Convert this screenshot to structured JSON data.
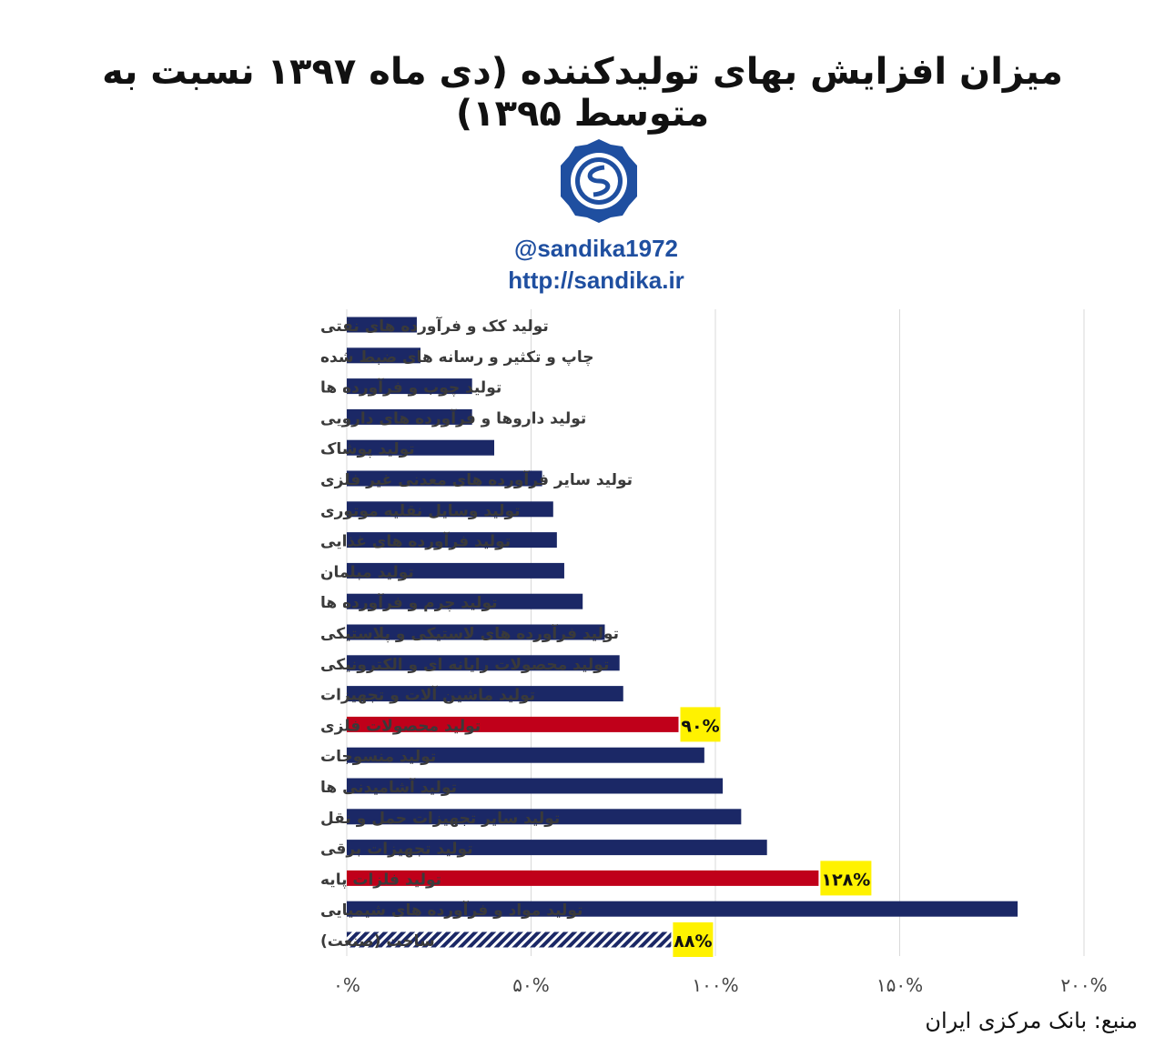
{
  "title": "میزان افزایش بهای تولیدکننده (دی ماه ۱۳۹۷ نسبت به متوسط ۱۳۹۵)",
  "handle": "@sandika1972",
  "url": "http://sandika.ir",
  "source": "منبع: بانک مرکزی ایران",
  "colors": {
    "normal": "#1b2866",
    "highlight": "#c0001a",
    "label_bg": "#fff200",
    "brand": "#1f4fa0"
  },
  "chart_data": {
    "type": "bar",
    "orientation": "horizontal",
    "xlim": [
      0,
      200
    ],
    "x_ticks": [
      "۰%",
      "۵۰%",
      "۱۰۰%",
      "۱۵۰%",
      "۲۰۰%"
    ],
    "grid": true,
    "categories": [
      "تولید کک و فرآورده های نفتی",
      "چاپ و تکثیر و رسانه های ضبط شده",
      "تولید چوب و فرآورده ها",
      "تولید داروها و فرآورده های دارویی",
      "تولید پوشاک",
      "تولید سایر فرآورده های معدنی غیر فلزی",
      "تولید وسایل نقلیه موتوری",
      "تولید فرآورده های غذایی",
      "تولید مبلمان",
      "تولید چرم و فرآورده ها",
      "تولید فرآورده های لاستیکی و پلاستیکی",
      "تولید محصولات رایانه ای و الکترونیکی",
      "تولید ماشین آلات و تجهیزات",
      "تولید محصولات فلزی",
      "تولید منسوجات",
      "تولید آشامیدنی ها",
      "تولید سایر تجهیزات حمل و نقل",
      "تولید تجهیزات برقی",
      "تولید فلزات پایه",
      "تولید مواد و فرآورده های شیمیایی",
      "ساخت (صنعت)"
    ],
    "values": [
      19,
      20,
      34,
      34,
      40,
      53,
      56,
      57,
      59,
      64,
      70,
      74,
      75,
      90,
      97,
      102,
      107,
      114,
      128,
      182,
      88
    ],
    "highlight": [
      "normal",
      "normal",
      "normal",
      "normal",
      "normal",
      "normal",
      "normal",
      "normal",
      "normal",
      "normal",
      "normal",
      "normal",
      "normal",
      "highlight",
      "normal",
      "normal",
      "normal",
      "normal",
      "highlight",
      "normal",
      "hatched"
    ],
    "data_labels": [
      "",
      "",
      "",
      "",
      "",
      "",
      "",
      "",
      "",
      "",
      "",
      "",
      "",
      "۹۰%",
      "",
      "",
      "",
      "",
      "۱۲۸%",
      "",
      "۸۸%"
    ]
  }
}
